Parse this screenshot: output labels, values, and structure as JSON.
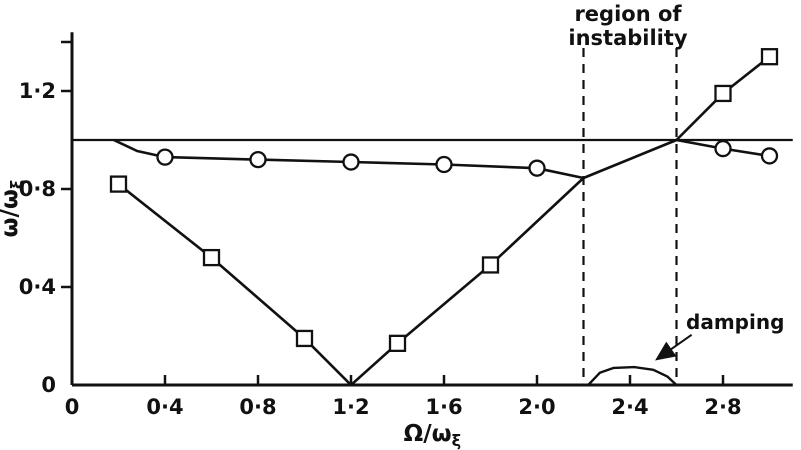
{
  "figure": {
    "background": "#ffffff",
    "ink_color": "#111111"
  },
  "chart_data": {
    "type": "line",
    "title": "",
    "xlabel_main": "Ω/ω",
    "xlabel_sub": "ξ",
    "ylabel_main": "ω/ω",
    "ylabel_sub": "ξ",
    "xlim": [
      0,
      3.1
    ],
    "ylim": [
      0,
      1.44
    ],
    "grid": false,
    "legend": "none",
    "x_ticks": [
      {
        "v": 0,
        "label": "0"
      },
      {
        "v": 0.4,
        "label": "0·4"
      },
      {
        "v": 0.8,
        "label": "0·8"
      },
      {
        "v": 1.2,
        "label": "1·2"
      },
      {
        "v": 1.6,
        "label": "1·6"
      },
      {
        "v": 2.0,
        "label": "2·0"
      },
      {
        "v": 2.4,
        "label": "2·4"
      },
      {
        "v": 2.8,
        "label": "2·8"
      }
    ],
    "y_ticks": [
      {
        "v": 0,
        "label": "0"
      },
      {
        "v": 0.4,
        "label": "0·4"
      },
      {
        "v": 0.8,
        "label": "0·8"
      },
      {
        "v": 1.2,
        "label": "1·2"
      },
      {
        "v": 1.4,
        "label": ""
      }
    ],
    "reference_line_y": 1.0,
    "series": [
      {
        "name": "square-branch",
        "marker": "square",
        "segments": [
          [
            [
              0.2,
              0.82
            ],
            [
              0.6,
              0.52
            ],
            [
              1.0,
              0.19
            ],
            [
              1.2,
              0.0
            ],
            [
              1.4,
              0.17
            ],
            [
              1.8,
              0.49
            ],
            [
              2.2,
              0.845
            ],
            [
              2.6,
              1.0
            ],
            [
              2.8,
              1.19
            ],
            [
              3.0,
              1.34
            ]
          ]
        ],
        "markers": [
          [
            0.2,
            0.82
          ],
          [
            0.6,
            0.52
          ],
          [
            1.0,
            0.19
          ],
          [
            1.4,
            0.17
          ],
          [
            1.8,
            0.49
          ],
          [
            2.8,
            1.19
          ],
          [
            3.0,
            1.34
          ]
        ]
      },
      {
        "name": "circle-branch",
        "marker": "circle",
        "segments": [
          [
            [
              0.18,
              1.0
            ],
            [
              0.28,
              0.955
            ],
            [
              0.4,
              0.93
            ],
            [
              0.8,
              0.92
            ],
            [
              1.2,
              0.91
            ],
            [
              1.6,
              0.9
            ],
            [
              2.0,
              0.885
            ],
            [
              2.2,
              0.845
            ]
          ],
          [
            [
              2.6,
              1.0
            ],
            [
              2.8,
              0.965
            ],
            [
              3.0,
              0.935
            ]
          ]
        ],
        "markers": [
          [
            0.4,
            0.93
          ],
          [
            0.8,
            0.92
          ],
          [
            1.2,
            0.91
          ],
          [
            1.6,
            0.9
          ],
          [
            2.0,
            0.885
          ],
          [
            2.8,
            0.965
          ],
          [
            3.0,
            0.935
          ]
        ]
      }
    ],
    "damping_curve": [
      [
        2.22,
        0
      ],
      [
        2.27,
        0.05
      ],
      [
        2.33,
        0.07
      ],
      [
        2.42,
        0.073
      ],
      [
        2.5,
        0.062
      ],
      [
        2.56,
        0.035
      ],
      [
        2.6,
        0
      ]
    ],
    "instability_region": {
      "x_start": 2.2,
      "x_end": 2.6
    },
    "annotations": {
      "region_label_line1": "region of",
      "region_label_line2": "instability",
      "damping_label": "damping"
    },
    "arrow": {
      "from": [
        2.665,
        0.205
      ],
      "ctrl": [
        2.575,
        0.145
      ],
      "to": [
        2.515,
        0.105
      ]
    }
  }
}
